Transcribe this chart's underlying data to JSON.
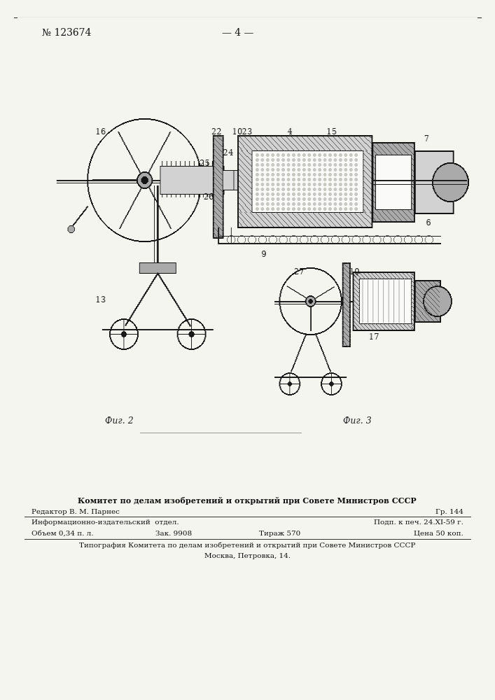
{
  "bg_color": "#f5f5f0",
  "page_width": 7.07,
  "page_height": 10.0,
  "header_patent": "№ 123674",
  "header_page": "— 4 —",
  "fig2_label": "Фиг. 2",
  "fig3_label": "Фиг. 3",
  "footer_line1": "Комитет по делам изобретений и открытий при Совете Министров СССР",
  "footer_line2_left": "Редактор В. М. Парнес",
  "footer_line2_right": "Гр. 144",
  "footer_line3_left": "Информационно-издательский  отдел.",
  "footer_line3_right": "Подп. к печ. 24.XI-59 г.",
  "footer_line4_left": "Объем 0,34 п. л.",
  "footer_line4_mid1": "Зак. 9908",
  "footer_line4_mid2": "Тираж 570",
  "footer_line4_right": "Цена 50 коп.",
  "footer_line5": "Типография Комитета по делам изобретений и открытий при Совете Министров СССР",
  "footer_line6": "Москва, Петровка, 14."
}
